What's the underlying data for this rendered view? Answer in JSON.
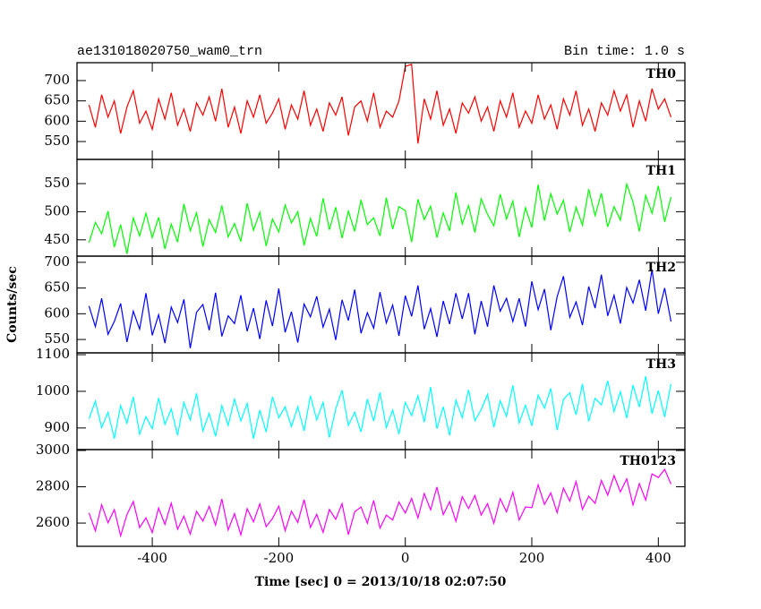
{
  "chart_data": {
    "type": "line",
    "title": "ae131018020750_wam0_trn",
    "subtitle": "Bin time: 1.0 s",
    "ylabel": "Counts/sec",
    "xlabel": "Time [sec] 0 = 2013/10/18 02:07:50",
    "xlim": [
      -519,
      442
    ],
    "xticks": [
      -400,
      -200,
      0,
      200,
      400
    ],
    "x": [
      -500,
      -490,
      -480,
      -470,
      -460,
      -450,
      -440,
      -430,
      -420,
      -410,
      -400,
      -390,
      -380,
      -370,
      -360,
      -350,
      -340,
      -330,
      -320,
      -310,
      -300,
      -290,
      -280,
      -270,
      -260,
      -250,
      -240,
      -230,
      -220,
      -210,
      -200,
      -190,
      -180,
      -170,
      -160,
      -150,
      -140,
      -130,
      -120,
      -110,
      -100,
      -90,
      -80,
      -70,
      -60,
      -50,
      -40,
      -30,
      -20,
      -10,
      0,
      10,
      20,
      30,
      40,
      50,
      60,
      70,
      80,
      90,
      100,
      110,
      120,
      130,
      140,
      150,
      160,
      170,
      180,
      190,
      200,
      210,
      220,
      230,
      240,
      250,
      260,
      270,
      280,
      290,
      300,
      310,
      320,
      330,
      340,
      350,
      360,
      370,
      380,
      390,
      400,
      410,
      420
    ],
    "series": [
      {
        "name": "TH0",
        "color": "#ff0000",
        "ylim": [
          506,
          744
        ],
        "yticks": [
          550,
          600,
          650,
          700
        ],
        "values": [
          640,
          585,
          665,
          610,
          650,
          570,
          635,
          675,
          595,
          625,
          580,
          655,
          605,
          670,
          590,
          630,
          575,
          645,
          615,
          660,
          600,
          680,
          585,
          635,
          570,
          650,
          610,
          665,
          595,
          620,
          655,
          580,
          640,
          605,
          675,
          590,
          630,
          575,
          645,
          615,
          660,
          565,
          635,
          650,
          600,
          670,
          585,
          625,
          610,
          650,
          735,
          740,
          545,
          655,
          605,
          675,
          590,
          630,
          570,
          645,
          620,
          660,
          600,
          635,
          575,
          650,
          610,
          670,
          585,
          625,
          595,
          665,
          605,
          640,
          580,
          655,
          615,
          675,
          590,
          630,
          575,
          645,
          615,
          675,
          625,
          665,
          585,
          650,
          600,
          680,
          630,
          655,
          610
        ]
      },
      {
        "name": "TH1",
        "color": "#00ff00",
        "ylim": [
          421,
          593
        ],
        "yticks": [
          450,
          500,
          550
        ],
        "values": [
          445,
          481,
          461,
          501,
          437,
          477,
          425,
          489,
          457,
          497,
          454,
          490,
          434,
          478,
          446,
          514,
          466,
          498,
          438,
          486,
          463,
          511,
          455,
          479,
          447,
          515,
          467,
          499,
          439,
          487,
          464,
          512,
          480,
          500,
          440,
          488,
          456,
          524,
          468,
          508,
          453,
          501,
          465,
          521,
          477,
          489,
          457,
          525,
          469,
          509,
          502,
          446,
          522,
          486,
          510,
          454,
          498,
          466,
          534,
          478,
          511,
          463,
          523,
          495,
          475,
          531,
          487,
          519,
          455,
          507,
          472,
          548,
          484,
          532,
          496,
          520,
          464,
          508,
          476,
          540,
          493,
          533,
          473,
          509,
          485,
          549,
          517,
          465,
          529,
          497,
          546,
          482,
          526
        ]
      },
      {
        "name": "TH2",
        "color": "#0000ff",
        "ylim": [
          524,
          712
        ],
        "yticks": [
          550,
          600,
          {
            "value": 650,
            "label": "650"
          },
          700
        ],
        "values": [
          615,
          575,
          630,
          560,
          585,
          620,
          545,
          605,
          570,
          640,
          558,
          598,
          543,
          613,
          583,
          628,
          533,
          603,
          618,
          568,
          641,
          556,
          596,
          581,
          636,
          566,
          611,
          551,
          626,
          576,
          649,
          564,
          604,
          544,
          619,
          594,
          634,
          574,
          609,
          549,
          627,
          587,
          647,
          562,
          602,
          572,
          642,
          582,
          617,
          557,
          635,
          595,
          655,
          570,
          610,
          555,
          625,
          580,
          640,
          590,
          640,
          560,
          625,
          575,
          655,
          605,
          630,
          585,
          630,
          575,
          663,
          608,
          648,
          568,
          633,
          673,
          593,
          623,
          578,
          653,
          611,
          676,
          596,
          636,
          581,
          651,
          621,
          666,
          606,
          686,
          600,
          650,
          585
        ]
      },
      {
        "name": "TH3",
        "color": "#00ffff",
        "ylim": [
          841,
          1105
        ],
        "yticks": [
          900,
          1000,
          1100
        ],
        "values": [
          925,
          973,
          901,
          943,
          871,
          961,
          913,
          985,
          883,
          931,
          898,
          982,
          910,
          952,
          880,
          970,
          922,
          994,
          892,
          940,
          877,
          961,
          907,
          979,
          919,
          967,
          871,
          949,
          889,
          985,
          928,
          958,
          904,
          958,
          892,
          988,
          922,
          970,
          874,
          952,
          1003,
          907,
          943,
          889,
          979,
          919,
          997,
          901,
          949,
          883,
          970,
          934,
          988,
          916,
          1012,
          898,
          958,
          880,
          976,
          928,
          1004,
          920,
          950,
          992,
          902,
          974,
          932,
          1016,
          914,
          962,
          906,
          990,
          954,
          1008,
          894,
          978,
          996,
          936,
          1020,
          918,
          981,
          963,
          1029,
          945,
          999,
          927,
          1017,
          957,
          1041,
          939,
          1002,
          930,
          1020
        ]
      },
      {
        "name": "TH0123",
        "color": "#ff00ff",
        "ylim": [
          2472,
          3005
        ],
        "yticks": [
          2600,
          2800,
          3000
        ],
        "values": [
          2656,
          2557,
          2701,
          2602,
          2674,
          2530,
          2647,
          2719,
          2575,
          2629,
          2548,
          2683,
          2593,
          2710,
          2566,
          2638,
          2539,
          2665,
          2611,
          2692,
          2589,
          2733,
          2562,
          2652,
          2535,
          2679,
          2607,
          2706,
          2580,
          2625,
          2693,
          2558,
          2666,
          2603,
          2729,
          2576,
          2648,
          2549,
          2675,
          2621,
          2707,
          2536,
          2662,
          2689,
          2599,
          2725,
          2572,
          2644,
          2617,
          2716,
          2655,
          2736,
          2628,
          2763,
          2673,
          2799,
          2646,
          2718,
          2610,
          2745,
          2680,
          2752,
          2644,
          2707,
          2599,
          2734,
          2662,
          2770,
          2617,
          2689,
          2685,
          2811,
          2703,
          2766,
          2658,
          2793,
          2721,
          2829,
          2676,
          2748,
          2709,
          2835,
          2754,
          2862,
          2772,
          2844,
          2700,
          2817,
          2727,
          2871,
          2851,
          2896,
          2815
        ]
      }
    ]
  }
}
